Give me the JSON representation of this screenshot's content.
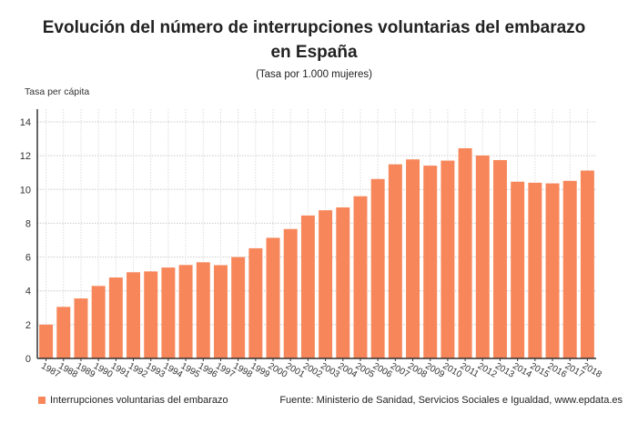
{
  "chart_data": {
    "type": "bar",
    "title_line1": "Evolución del número de interrupciones voluntarias del embarazo",
    "title_line2": "en España",
    "subtitle": "(Tasa por 1.000 mujeres)",
    "ylabel": "Tasa per cápita",
    "ylim": [
      0,
      14
    ],
    "yticks": [
      0,
      2,
      4,
      6,
      8,
      10,
      12,
      14
    ],
    "grid": true,
    "legend_position": "bottom-left",
    "bar_color": "#f7875a",
    "categories": [
      "1987",
      "1988",
      "1989",
      "1990",
      "1991",
      "1992",
      "1993",
      "1994",
      "1995",
      "1996",
      "1997",
      "1998",
      "1999",
      "2000",
      "2001",
      "2002",
      "2003",
      "2004",
      "2005",
      "2006",
      "2007",
      "2008",
      "2009",
      "2010",
      "2011",
      "2012",
      "2013",
      "2014",
      "2015",
      "2016",
      "2017",
      "2018"
    ],
    "series": [
      {
        "name": "Interrupciones voluntarias del embarazo",
        "values": [
          2.0,
          3.05,
          3.55,
          4.29,
          4.79,
          5.1,
          5.15,
          5.38,
          5.53,
          5.69,
          5.52,
          6.0,
          6.52,
          7.14,
          7.66,
          8.46,
          8.77,
          8.94,
          9.6,
          10.62,
          11.49,
          11.78,
          11.41,
          11.71,
          12.44,
          12.01,
          11.74,
          10.46,
          10.4,
          10.36,
          10.51,
          11.12
        ]
      }
    ],
    "source": "Fuente: Ministerio de Sanidad, Servicios Sociales e Igualdad, www.epdata.es"
  }
}
